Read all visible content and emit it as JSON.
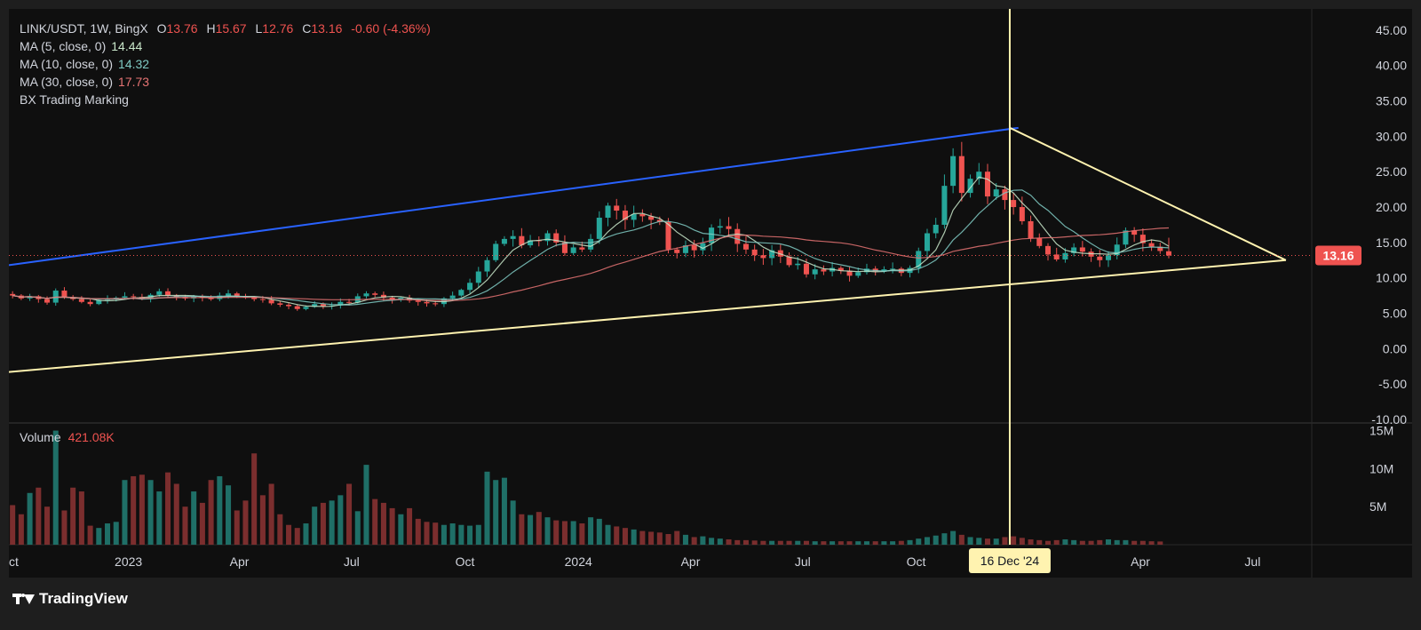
{
  "legend": {
    "symbol": "LINK/USDT, 1W, BingX",
    "o_label": "O",
    "o": "13.76",
    "h_label": "H",
    "h": "15.67",
    "l_label": "L",
    "l": "12.76",
    "c_label": "C",
    "c": "13.16",
    "change": "-0.60 (-4.36%)",
    "ma5_label": "MA (5, close, 0)",
    "ma5": "14.44",
    "ma10_label": "MA (10, close, 0)",
    "ma10": "14.32",
    "ma30_label": "MA (30, close, 0)",
    "ma30": "17.73",
    "indicator": "BX Trading Marking"
  },
  "volume": {
    "label": "Volume",
    "value": "421.08K"
  },
  "price_tag": "13.16",
  "crosshair_date": "16 Dec '24",
  "brand": "TradingView",
  "colors": {
    "up": "#26a69a",
    "down": "#ef5350",
    "ma5": "#c8e6c9",
    "ma10": "#80cbc4",
    "ma30": "#e57373",
    "blue_line": "#2962ff",
    "trend_line": "#fff3b0"
  },
  "chart_data": {
    "type": "candlestick",
    "interval": "1W",
    "x_range": [
      "2022-09-26",
      "2025-08-18"
    ],
    "x_tick_labels": [
      "ct",
      "2023",
      "Apr",
      "Jul",
      "Oct",
      "2024",
      "Apr",
      "Jul",
      "Oct",
      "16 Dec '24",
      "Apr",
      "Jul"
    ],
    "x_tick_dates": [
      "2022-09-26",
      "2023-01-01",
      "2023-04-01",
      "2023-07-01",
      "2023-10-01",
      "2024-01-01",
      "2024-04-01",
      "2024-07-01",
      "2024-10-01",
      "2024-12-16",
      "2025-04-01",
      "2025-07-01"
    ],
    "price_axis": {
      "ticks": [
        "45.00",
        "40.00",
        "35.00",
        "30.00",
        "25.00",
        "20.00",
        "15.00",
        "10.00",
        "5.00",
        "0.00",
        "-5.00",
        "-10.00"
      ],
      "ylim": [
        -10.5,
        48
      ]
    },
    "volume_axis": {
      "ticks": [
        "15M",
        "10M",
        "5M"
      ],
      "ylim": [
        0,
        16
      ]
    },
    "closes": [
      7.5,
      7.1,
      7.4,
      7.0,
      6.5,
      8.2,
      7.2,
      7.0,
      6.6,
      6.3,
      6.9,
      7.0,
      7.2,
      7.4,
      7.3,
      7.1,
      7.6,
      8.1,
      7.5,
      7.3,
      7.1,
      7.4,
      7.2,
      7.0,
      7.5,
      7.8,
      7.4,
      7.2,
      7.0,
      6.9,
      6.4,
      6.2,
      6.0,
      5.6,
      5.9,
      6.3,
      6.0,
      6.1,
      6.6,
      6.5,
      7.4,
      7.8,
      7.6,
      7.2,
      6.9,
      7.2,
      6.8,
      6.6,
      6.4,
      6.3,
      7.1,
      7.5,
      8.3,
      9.3,
      10.9,
      12.5,
      14.8,
      15.5,
      15.9,
      14.6,
      15.3,
      15.2,
      16.3,
      15.0,
      13.5,
      14.3,
      14.0,
      15.5,
      18.5,
      20.2,
      19.5,
      18.2,
      19.0,
      18.7,
      18.2,
      17.9,
      14.0,
      13.5,
      14.6,
      13.9,
      14.9,
      17.1,
      17.3,
      16.9,
      14.8,
      14.0,
      13.2,
      12.8,
      13.9,
      13.0,
      11.8,
      12.0,
      10.5,
      11.2,
      10.9,
      11.4,
      11.0,
      10.3,
      10.8,
      11.3,
      10.9,
      11.2,
      11.3,
      10.7,
      11.4,
      13.8,
      16.3,
      17.5,
      23.0,
      27.2,
      22.0,
      24.0,
      25.0,
      21.5,
      22.5,
      21.0,
      20.0,
      18.0,
      15.6,
      14.5,
      13.3,
      12.6,
      13.5,
      14.3,
      13.7,
      13.0,
      12.5,
      13.2,
      14.7,
      16.7,
      16.1,
      14.9,
      14.4,
      13.8,
      13.16
    ],
    "volumes_m": [
      5.2,
      4.0,
      6.8,
      7.5,
      5.0,
      15.0,
      4.5,
      7.5,
      7.0,
      2.5,
      2.2,
      2.8,
      3.0,
      8.5,
      9.0,
      9.2,
      8.5,
      7.0,
      9.5,
      8.0,
      5.0,
      7.0,
      5.5,
      8.5,
      9.0,
      7.8,
      4.5,
      5.8,
      12.0,
      6.5,
      8.0,
      4.0,
      2.6,
      2.2,
      2.8,
      5.0,
      5.5,
      5.8,
      6.5,
      8.0,
      4.4,
      10.5,
      6.0,
      5.5,
      4.8,
      4.0,
      4.8,
      3.4,
      3.0,
      2.9,
      2.6,
      2.8,
      2.6,
      2.5,
      2.6,
      9.6,
      8.5,
      8.8,
      5.8,
      4.0,
      3.9,
      4.3,
      3.6,
      3.2,
      3.1,
      3.1,
      2.8,
      3.6,
      3.4,
      2.6,
      2.4,
      2.2,
      2.0,
      1.8,
      1.7,
      1.6,
      1.4,
      1.8,
      1.3,
      1.0,
      1.1,
      0.9,
      0.8,
      0.7,
      0.6,
      0.6,
      0.55,
      0.5,
      0.5,
      0.5,
      0.5,
      0.5,
      0.5,
      0.45,
      0.45,
      0.45,
      0.45,
      0.45,
      0.45,
      0.45,
      0.45,
      0.45,
      0.45,
      0.5,
      0.6,
      0.8,
      1.0,
      1.2,
      1.5,
      1.8,
      1.3,
      1.0,
      0.9,
      0.8,
      0.8,
      1.0,
      1.1,
      0.9,
      0.7,
      0.6,
      0.5,
      0.6,
      0.7,
      0.6,
      0.5,
      0.5,
      0.6,
      0.7,
      0.6,
      0.6,
      0.5,
      0.5,
      0.45,
      0.42
    ],
    "ma5_last": 14.44,
    "ma10_last": 14.32,
    "ma30_last": 17.73,
    "trendlines": [
      {
        "name": "blue",
        "from": [
          "2022-09-26",
          11.8
        ],
        "to": [
          "2024-12-23",
          31.2
        ]
      },
      {
        "name": "upper",
        "from": [
          "2024-12-16",
          31.2
        ],
        "to": [
          "2025-07-28",
          12.5
        ]
      },
      {
        "name": "lower",
        "from": [
          "2022-09-26",
          -3.3
        ],
        "to": [
          "2025-07-28",
          12.5
        ]
      }
    ]
  }
}
